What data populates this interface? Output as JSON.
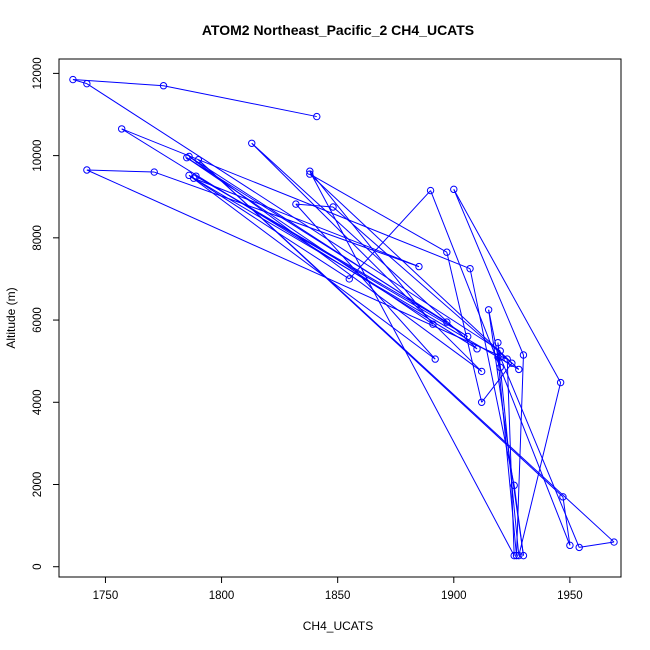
{
  "chart_data": {
    "type": "line",
    "title": "ATOM2 Northeast_Pacific_2 CH4_UCATS",
    "xlabel": "CH4_UCATS",
    "ylabel": "Altitude (m)",
    "xlim": [
      1730,
      1972
    ],
    "ylim": [
      -250,
      12350
    ],
    "xticks": [
      1750,
      1800,
      1850,
      1900,
      1950
    ],
    "yticks": [
      0,
      2000,
      4000,
      6000,
      8000,
      10000,
      12000
    ],
    "marker": "open-circle",
    "grid": false,
    "legend": "none",
    "color": "#0000ff",
    "series": [
      {
        "points": [
          [
            1841,
            10950
          ],
          [
            1775,
            11700
          ],
          [
            1736,
            11850
          ],
          [
            1742,
            11750
          ],
          [
            1920,
            5250
          ],
          [
            1919,
            5100
          ],
          [
            1927,
            270
          ],
          [
            1930,
            5150
          ],
          [
            1900,
            9180
          ],
          [
            1946,
            4480
          ],
          [
            1928,
            270
          ],
          [
            1919,
            5450
          ],
          [
            1920,
            4850
          ],
          [
            1915,
            6250
          ],
          [
            1930,
            270
          ],
          [
            1926,
            1980
          ],
          [
            1907,
            7250
          ],
          [
            1757,
            10650
          ],
          [
            1910,
            5300
          ],
          [
            1813,
            10300
          ],
          [
            1912,
            4750
          ],
          [
            1786,
            9980
          ],
          [
            1906,
            5600
          ],
          [
            1789,
            9500
          ],
          [
            1897,
            5950
          ],
          [
            1785,
            9950
          ],
          [
            1891,
            5900
          ],
          [
            1838,
            9620
          ],
          [
            1926,
            270
          ],
          [
            1923,
            5050
          ],
          [
            1742,
            9650
          ],
          [
            1771,
            9600
          ],
          [
            1885,
            7300
          ],
          [
            1788,
            9450
          ],
          [
            1928,
            4800
          ],
          [
            1838,
            9550
          ],
          [
            1897,
            7650
          ],
          [
            1912,
            4000
          ],
          [
            1925,
            4950
          ],
          [
            1848,
            8750
          ],
          [
            1832,
            8820
          ],
          [
            1892,
            5050
          ],
          [
            1786,
            9520
          ],
          [
            1855,
            7000
          ],
          [
            1890,
            9150
          ],
          [
            1950,
            520
          ],
          [
            1947,
            1700
          ],
          [
            1790,
            9900
          ],
          [
            1969,
            600
          ],
          [
            1954,
            470
          ],
          [
            1920,
            5100
          ]
        ]
      }
    ]
  }
}
